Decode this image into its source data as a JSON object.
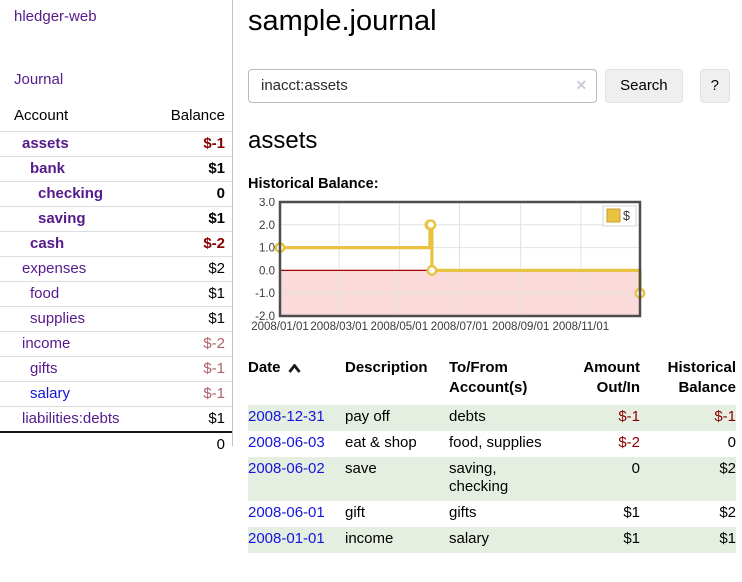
{
  "app": {
    "name": "hledger-web"
  },
  "sidebar": {
    "journal_label": "Journal",
    "headers": {
      "account": "Account",
      "balance": "Balance"
    },
    "accounts": [
      {
        "name": "assets",
        "balance": "$-1",
        "depth": 1,
        "bold": true,
        "tone": "neg"
      },
      {
        "name": "bank",
        "balance": "$1",
        "depth": 2,
        "bold": true,
        "tone": ""
      },
      {
        "name": "checking",
        "balance": "0",
        "depth": 3,
        "bold": true,
        "tone": ""
      },
      {
        "name": "saving",
        "balance": "$1",
        "depth": 3,
        "bold": true,
        "tone": ""
      },
      {
        "name": "cash",
        "balance": "$-2",
        "depth": 2,
        "bold": true,
        "tone": "neg"
      },
      {
        "name": "expenses",
        "balance": "$2",
        "depth": 1,
        "bold": false,
        "tone": ""
      },
      {
        "name": "food",
        "balance": "$1",
        "depth": 2,
        "bold": false,
        "tone": ""
      },
      {
        "name": "supplies",
        "balance": "$1",
        "depth": 2,
        "bold": false,
        "tone": ""
      },
      {
        "name": "income",
        "balance": "$-2",
        "depth": 1,
        "bold": false,
        "tone": "negsoft"
      },
      {
        "name": "gifts",
        "balance": "$-1",
        "depth": 2,
        "bold": false,
        "tone": "negsoft"
      },
      {
        "name": "salary",
        "balance": "$-1",
        "depth": 2,
        "bold": false,
        "tone": "negsoft",
        "link": "blue"
      },
      {
        "name": "liabilities:debts",
        "balance": "$1",
        "depth": 1,
        "bold": false,
        "tone": ""
      }
    ],
    "total": "0"
  },
  "main": {
    "title": "sample.journal",
    "search": {
      "value": "inacct:assets",
      "clear_icon": "✕",
      "button_label": "Search",
      "help_label": "?"
    },
    "account_heading": "assets",
    "chart_heading": "Historical Balance:"
  },
  "chart_data": {
    "type": "line",
    "style": "step-after",
    "title": "Historical Balance",
    "legend": [
      {
        "label": "$",
        "color": "#e8c240"
      }
    ],
    "legend_position": "top-right",
    "grid": true,
    "ylim": [
      -2,
      3
    ],
    "yticks": [
      "3.0",
      "2.0",
      "1.0",
      "0.0",
      "-1.0",
      "-2.0"
    ],
    "ytick_values": [
      3,
      2,
      1,
      0,
      -1,
      -2
    ],
    "xrange": [
      "2008-01-01",
      "2008-12-31"
    ],
    "xticks": [
      {
        "label": "2008/01/01",
        "date": "2008-01-01"
      },
      {
        "label": "2008/03/01",
        "date": "2008-03-01"
      },
      {
        "label": "2008/05/01",
        "date": "2008-05-01"
      },
      {
        "label": "2008/07/01",
        "date": "2008-07-01"
      },
      {
        "label": "2008/09/01",
        "date": "2008-09-01"
      },
      {
        "label": "2008/11/01",
        "date": "2008-11-01"
      }
    ],
    "series": [
      {
        "name": "$",
        "color": "#e8c240",
        "points": [
          {
            "date": "2008-01-01",
            "value": 1
          },
          {
            "date": "2008-06-01",
            "value": 2
          },
          {
            "date": "2008-06-02",
            "value": 2
          },
          {
            "date": "2008-06-03",
            "value": 0
          },
          {
            "date": "2008-12-31",
            "value": -1
          }
        ]
      }
    ],
    "zero_line_color": "#a40000",
    "negative_region_color": "#fbdada"
  },
  "transactions": {
    "headers": {
      "date": "Date",
      "description": "Description",
      "accounts": "To/From Account(s)",
      "amount": "Amount Out/In",
      "balance": "Historical Balance"
    },
    "sort": "ascending",
    "rows": [
      {
        "date": "2008-12-31",
        "description": "pay off",
        "accounts": "debts",
        "amount": "$-1",
        "amount_tone": "neg",
        "balance": "$-1",
        "balance_tone": "neg"
      },
      {
        "date": "2008-06-03",
        "description": "eat & shop",
        "accounts": "food, supplies",
        "amount": "$-2",
        "amount_tone": "neg",
        "balance": "0",
        "balance_tone": ""
      },
      {
        "date": "2008-06-02",
        "description": "save",
        "accounts": "saving, checking",
        "amount": "0",
        "amount_tone": "",
        "balance": "$2",
        "balance_tone": ""
      },
      {
        "date": "2008-06-01",
        "description": "gift",
        "accounts": "gifts",
        "amount": "$1",
        "amount_tone": "",
        "balance": "$2",
        "balance_tone": ""
      },
      {
        "date": "2008-01-01",
        "description": "income",
        "accounts": "salary",
        "amount": "$1",
        "amount_tone": "",
        "balance": "$1",
        "balance_tone": ""
      }
    ]
  }
}
